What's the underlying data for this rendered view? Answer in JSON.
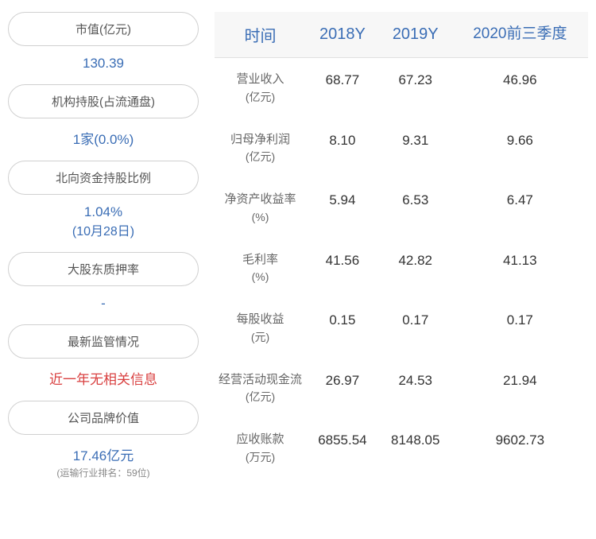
{
  "left": {
    "items": [
      {
        "label": "市值(亿元)",
        "value": "130.39",
        "value_class": "info-value"
      },
      {
        "label": "机构持股(占流通盘)",
        "value": "1家(0.0%)",
        "value_class": "info-value"
      },
      {
        "label": "北向资金持股比例",
        "value": "1.04%",
        "sub": "(10月28日)",
        "value_class": "info-value"
      },
      {
        "label": "大股东质押率",
        "value": "-",
        "value_class": "info-value-dash"
      },
      {
        "label": "最新监管情况",
        "value": "近一年无相关信息",
        "value_class": "info-value-red"
      },
      {
        "label": "公司品牌价值",
        "value": "17.46亿元",
        "value_class": "info-value",
        "footnote": "(运输行业排名：59位)"
      }
    ]
  },
  "table": {
    "headers": [
      "时间",
      "2018Y",
      "2019Y",
      "2020前三季度"
    ],
    "rows": [
      {
        "label": "营业收入",
        "unit": "(亿元)",
        "values": [
          "68.77",
          "67.23",
          "46.96"
        ]
      },
      {
        "label": "归母净利润",
        "unit": "(亿元)",
        "values": [
          "8.10",
          "9.31",
          "9.66"
        ]
      },
      {
        "label": "净资产收益率",
        "unit": "(%)",
        "values": [
          "5.94",
          "6.53",
          "6.47"
        ]
      },
      {
        "label": "毛利率",
        "unit": "(%)",
        "values": [
          "41.56",
          "42.82",
          "41.13"
        ]
      },
      {
        "label": "每股收益",
        "unit": "(元)",
        "values": [
          "0.15",
          "0.17",
          "0.17"
        ]
      },
      {
        "label": "经营活动现金流",
        "unit": "(亿元)",
        "values": [
          "26.97",
          "24.53",
          "21.94"
        ]
      },
      {
        "label": "应收账款",
        "unit": "(万元)",
        "values": [
          "6855.54",
          "8148.05",
          "9602.73"
        ]
      }
    ]
  }
}
